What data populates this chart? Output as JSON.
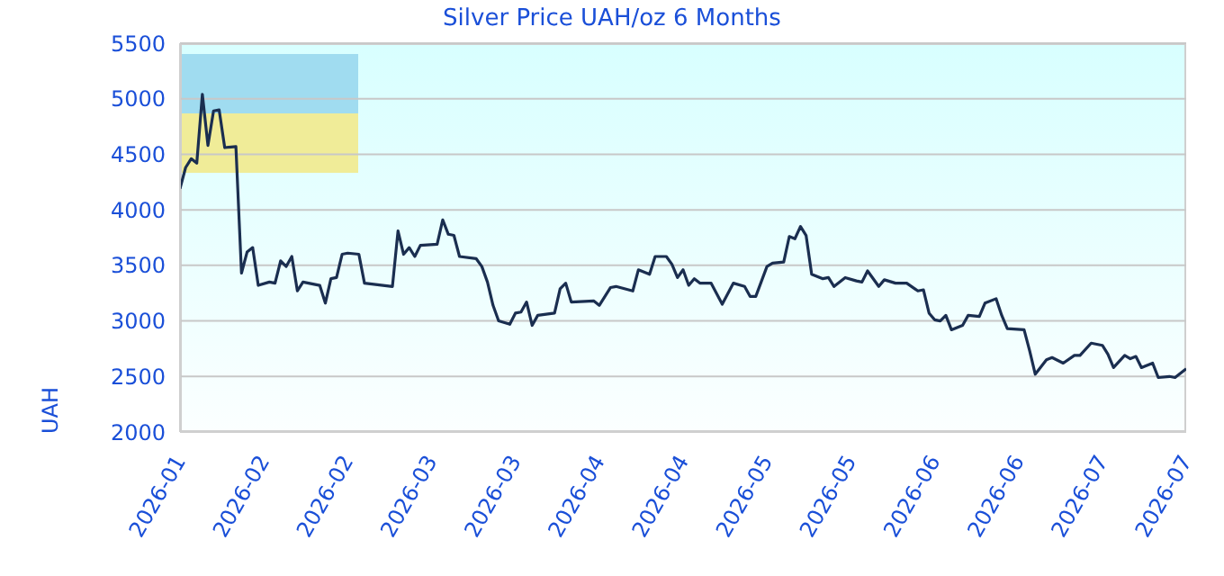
{
  "chart_data": {
    "type": "line",
    "title": "Silver Price UAH/oz 6 Months",
    "ylabel": "UAH",
    "x": [
      "2026-01-28",
      "2026-01-29",
      "2026-01-30",
      "2026-01-31",
      "2026-02-01",
      "2026-02-02",
      "2026-02-03",
      "2026-02-04",
      "2026-02-05",
      "2026-02-07",
      "2026-02-08",
      "2026-02-09",
      "2026-02-10",
      "2026-02-11",
      "2026-02-13",
      "2026-02-14",
      "2026-02-15",
      "2026-02-16",
      "2026-02-17",
      "2026-02-18",
      "2026-02-19",
      "2026-02-22",
      "2026-02-23",
      "2026-02-24",
      "2026-02-25",
      "2026-02-26",
      "2026-02-27",
      "2026-03-01",
      "2026-03-02",
      "2026-03-07",
      "2026-03-08",
      "2026-03-09",
      "2026-03-10",
      "2026-03-11",
      "2026-03-12",
      "2026-03-15",
      "2026-03-16",
      "2026-03-17",
      "2026-03-18",
      "2026-03-19",
      "2026-03-22",
      "2026-03-23",
      "2026-03-24",
      "2026-03-25",
      "2026-03-26",
      "2026-03-28",
      "2026-03-29",
      "2026-03-30",
      "2026-03-31",
      "2026-04-01",
      "2026-04-02",
      "2026-04-05",
      "2026-04-06",
      "2026-04-07",
      "2026-04-08",
      "2026-04-12",
      "2026-04-13",
      "2026-04-15",
      "2026-04-16",
      "2026-04-19",
      "2026-04-20",
      "2026-04-22",
      "2026-04-23",
      "2026-04-25",
      "2026-04-26",
      "2026-04-27",
      "2026-04-28",
      "2026-04-29",
      "2026-04-30",
      "2026-05-01",
      "2026-05-03",
      "2026-05-05",
      "2026-05-07",
      "2026-05-09",
      "2026-05-10",
      "2026-05-11",
      "2026-05-13",
      "2026-05-14",
      "2026-05-16",
      "2026-05-17",
      "2026-05-18",
      "2026-05-19",
      "2026-05-20",
      "2026-05-21",
      "2026-05-23",
      "2026-05-24",
      "2026-05-25",
      "2026-05-27",
      "2026-05-29",
      "2026-05-30",
      "2026-05-31",
      "2026-06-02",
      "2026-06-03",
      "2026-06-05",
      "2026-06-07",
      "2026-06-09",
      "2026-06-10",
      "2026-06-11",
      "2026-06-12",
      "2026-06-13",
      "2026-06-14",
      "2026-06-15",
      "2026-06-17",
      "2026-06-18",
      "2026-06-20",
      "2026-06-21",
      "2026-06-23",
      "2026-06-24",
      "2026-06-25",
      "2026-06-28",
      "2026-06-29",
      "2026-06-30",
      "2026-07-02",
      "2026-07-03",
      "2026-07-05",
      "2026-07-07",
      "2026-07-08",
      "2026-07-10",
      "2026-07-12",
      "2026-07-13",
      "2026-07-14",
      "2026-07-16",
      "2026-07-17",
      "2026-07-18",
      "2026-07-19",
      "2026-07-21",
      "2026-07-22",
      "2026-07-24",
      "2026-07-25",
      "2026-07-27"
    ],
    "series": [
      {
        "color": "#1a2e50",
        "values": [
          4190,
          4380,
          4460,
          4420,
          5040,
          4580,
          4890,
          4900,
          4560,
          4570,
          3430,
          3620,
          3660,
          3320,
          3350,
          3340,
          3540,
          3490,
          3580,
          3270,
          3350,
          3320,
          3160,
          3380,
          3390,
          3600,
          3610,
          3600,
          3340,
          3310,
          3810,
          3600,
          3660,
          3580,
          3680,
          3690,
          3910,
          3780,
          3770,
          3580,
          3560,
          3490,
          3350,
          3140,
          3000,
          2970,
          3070,
          3080,
          3170,
          2960,
          3050,
          3070,
          3290,
          3340,
          3170,
          3180,
          3140,
          3300,
          3310,
          3270,
          3460,
          3420,
          3580,
          3580,
          3510,
          3390,
          3460,
          3320,
          3380,
          3340,
          3340,
          3150,
          3340,
          3310,
          3220,
          3220,
          3490,
          3520,
          3530,
          3760,
          3740,
          3850,
          3770,
          3420,
          3380,
          3390,
          3310,
          3390,
          3360,
          3350,
          3450,
          3310,
          3370,
          3340,
          3340,
          3270,
          3280,
          3070,
          3010,
          3000,
          3050,
          2920,
          2960,
          3050,
          3040,
          3160,
          3200,
          3050,
          2930,
          2920,
          2730,
          2520,
          2650,
          2670,
          2620,
          2690,
          2690,
          2800,
          2780,
          2700,
          2580,
          2690,
          2660,
          2680,
          2580,
          2620,
          2490,
          2500,
          2490,
          2570
        ]
      }
    ],
    "xlim": [
      "2026-01-28",
      "2026-07-27"
    ],
    "xticks": [
      {
        "value": "2026-01-28",
        "label": "2026-01"
      },
      {
        "value": "2026-02-12",
        "label": "2026-02"
      },
      {
        "value": "2026-02-27",
        "label": "2026-02"
      },
      {
        "value": "2026-03-14",
        "label": "2026-03"
      },
      {
        "value": "2026-03-29",
        "label": "2026-03"
      },
      {
        "value": "2026-04-13",
        "label": "2026-04"
      },
      {
        "value": "2026-04-28",
        "label": "2026-04"
      },
      {
        "value": "2026-05-13",
        "label": "2026-05"
      },
      {
        "value": "2026-05-28",
        "label": "2026-05"
      },
      {
        "value": "2026-06-12",
        "label": "2026-06"
      },
      {
        "value": "2026-06-27",
        "label": "2026-06"
      },
      {
        "value": "2026-07-12",
        "label": "2026-07"
      },
      {
        "value": "2026-07-27",
        "label": "2026-07"
      }
    ],
    "ylim": [
      2000,
      5500
    ],
    "yticks": [
      2000,
      2500,
      3000,
      3500,
      4000,
      4500,
      5000,
      5500
    ],
    "grid": "y",
    "legend": false,
    "marker": "none",
    "line_style": "solid"
  }
}
